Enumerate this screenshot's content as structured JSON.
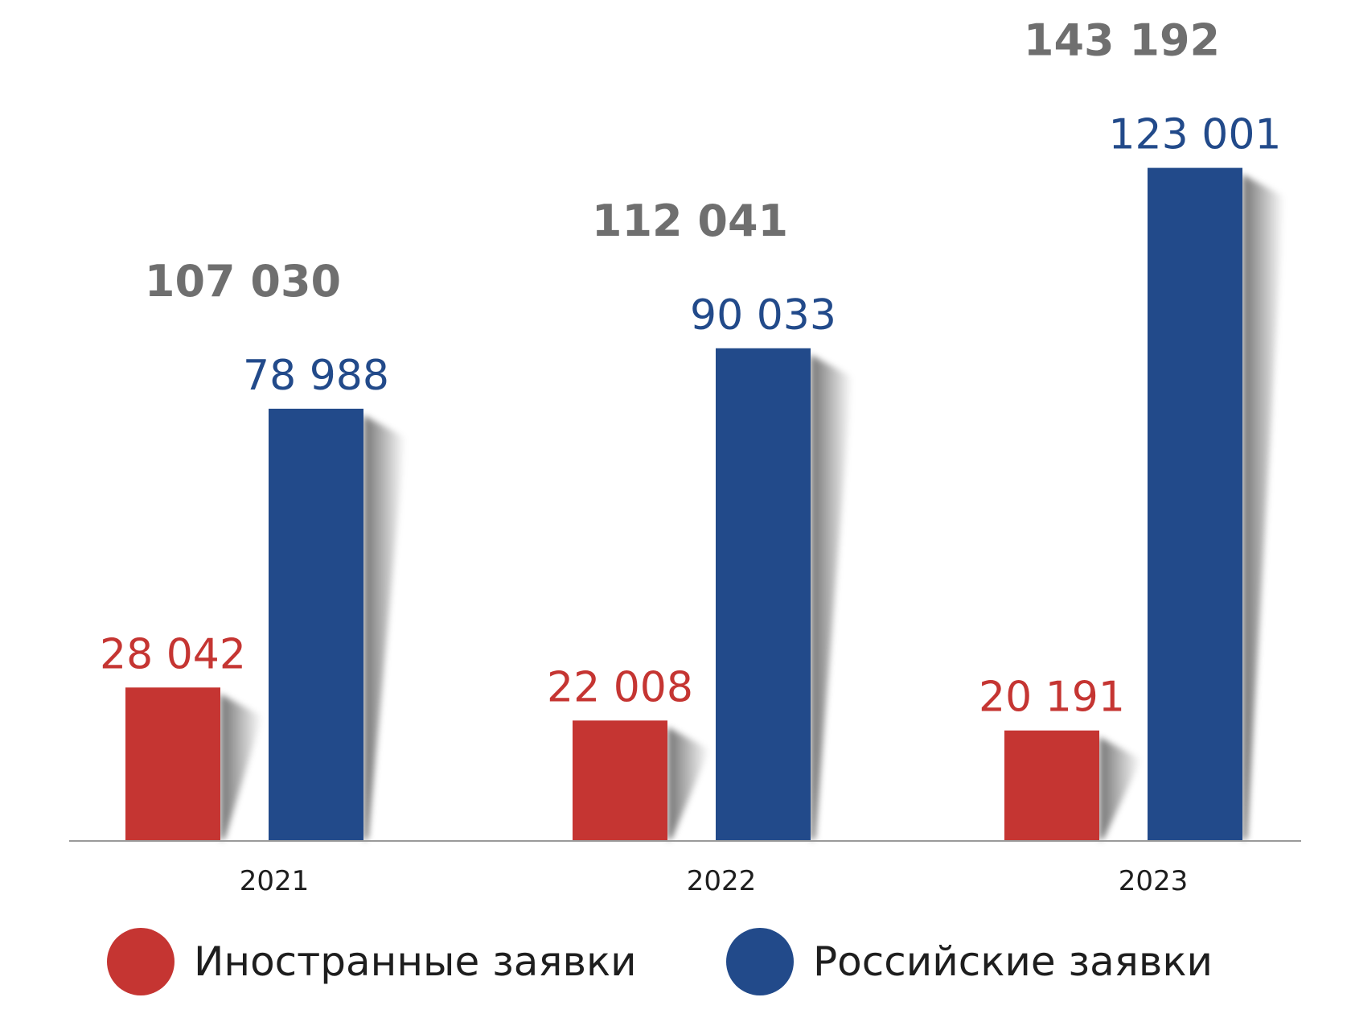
{
  "colors": {
    "foreign": "#c53532",
    "russian": "#224a8a",
    "total": "#6f6f6f",
    "axis_text": "#1e1e1e",
    "baseline": "#9a9a9a"
  },
  "legend": {
    "foreign_label": "Иностранные заявки",
    "russian_label": "Российские заявки"
  },
  "chart_data": {
    "type": "bar",
    "categories": [
      "2021",
      "2022",
      "2023"
    ],
    "series": [
      {
        "name": "Иностранные заявки",
        "values": [
          28042,
          22008,
          20191
        ],
        "labels": [
          "28 042",
          "22 008",
          "20 191"
        ]
      },
      {
        "name": "Российские заявки",
        "values": [
          78988,
          90033,
          123001
        ],
        "labels": [
          "78 988",
          "90 033",
          "123 001"
        ]
      }
    ],
    "totals": {
      "values": [
        107030,
        112041,
        143192
      ],
      "labels": [
        "107 030",
        "112 041",
        "143 192"
      ]
    },
    "grid": false,
    "legend_position": "bottom"
  }
}
